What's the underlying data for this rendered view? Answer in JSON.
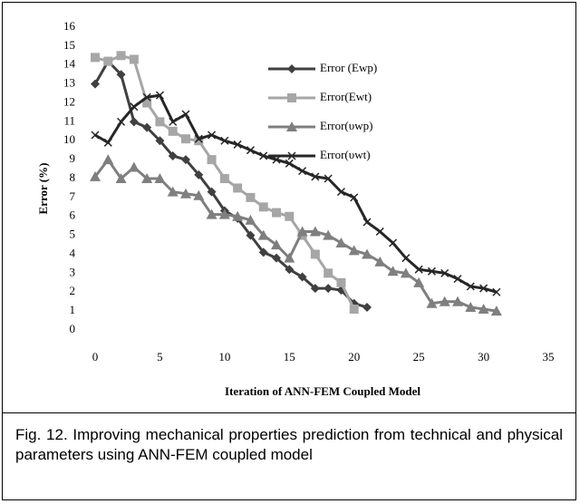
{
  "chart_data": {
    "type": "line",
    "ylabel": "Error (%)",
    "xlabel": "Iteration of ANN-FEM Coupled Model",
    "caption": "Fig. 12. Improving mechanical properties prediction from technical and physical parameters using ANN-FEM coupled model",
    "xlim": [
      0,
      35
    ],
    "xticks": [
      0,
      5,
      10,
      15,
      20,
      25,
      30,
      35
    ],
    "ylim": [
      0,
      16
    ],
    "yticks": [
      0,
      1,
      2,
      3,
      4,
      5,
      6,
      7,
      8,
      9,
      10,
      11,
      12,
      13,
      14,
      15,
      16
    ],
    "grid": false,
    "series": [
      {
        "name": "Error (Ewp)",
        "color": "#404040",
        "marker": "diamond",
        "x": [
          0,
          1,
          2,
          3,
          4,
          5,
          6,
          7,
          8,
          9,
          10,
          11,
          12,
          13,
          14,
          15,
          16,
          17,
          18,
          19,
          20,
          21
        ],
        "values": [
          13,
          14.2,
          13.5,
          11,
          10.7,
          10,
          9.2,
          9,
          8.2,
          7.3,
          6.3,
          5.9,
          5,
          4.1,
          3.8,
          3.2,
          2.8,
          2.2,
          2.2,
          2.1,
          1.4,
          1.2
        ]
      },
      {
        "name": "Error(Ewt)",
        "color": "#a6a6a6",
        "marker": "square",
        "x": [
          0,
          1,
          2,
          3,
          4,
          5,
          6,
          7,
          8,
          9,
          10,
          11,
          12,
          13,
          14,
          15,
          16,
          17,
          18,
          19,
          20
        ],
        "values": [
          14.4,
          14.2,
          14.5,
          14.3,
          12,
          11,
          10.5,
          10.1,
          10,
          9,
          8,
          7.5,
          7,
          6.5,
          6.2,
          6,
          5,
          4,
          3,
          2.5,
          1.1
        ]
      },
      {
        "name": "Error(υwp)",
        "color": "#7f7f7f",
        "marker": "triangle",
        "x": [
          0,
          1,
          2,
          3,
          4,
          5,
          6,
          7,
          8,
          9,
          10,
          11,
          12,
          13,
          14,
          15,
          16,
          17,
          18,
          19,
          20,
          21,
          22,
          23,
          24,
          25,
          26,
          27,
          28,
          29,
          30,
          31
        ],
        "values": [
          8.1,
          9,
          8,
          8.6,
          8,
          8,
          7.3,
          7.2,
          7.1,
          6.1,
          6.1,
          6,
          5.8,
          5,
          4.5,
          3.8,
          5.2,
          5.2,
          5,
          4.6,
          4.2,
          4,
          3.6,
          3.1,
          3,
          2.5,
          1.4,
          1.5,
          1.5,
          1.2,
          1.1,
          1
        ]
      },
      {
        "name": "Error(υwt)",
        "color": "#262626",
        "marker": "x",
        "x": [
          0,
          1,
          2,
          3,
          4,
          5,
          6,
          7,
          8,
          9,
          10,
          11,
          12,
          13,
          14,
          15,
          16,
          17,
          18,
          19,
          20,
          21,
          22,
          23,
          24,
          25,
          26,
          27,
          28,
          29,
          30,
          31
        ],
        "values": [
          10.3,
          9.9,
          11,
          11.8,
          12.3,
          12.4,
          11,
          11.4,
          10.1,
          10.3,
          10,
          9.8,
          9.5,
          9.2,
          9,
          8.8,
          8.4,
          8.1,
          8,
          7.3,
          7,
          5.7,
          5.2,
          4.6,
          3.8,
          3.2,
          3.1,
          3,
          2.7,
          2.3,
          2.2,
          2
        ]
      }
    ]
  }
}
